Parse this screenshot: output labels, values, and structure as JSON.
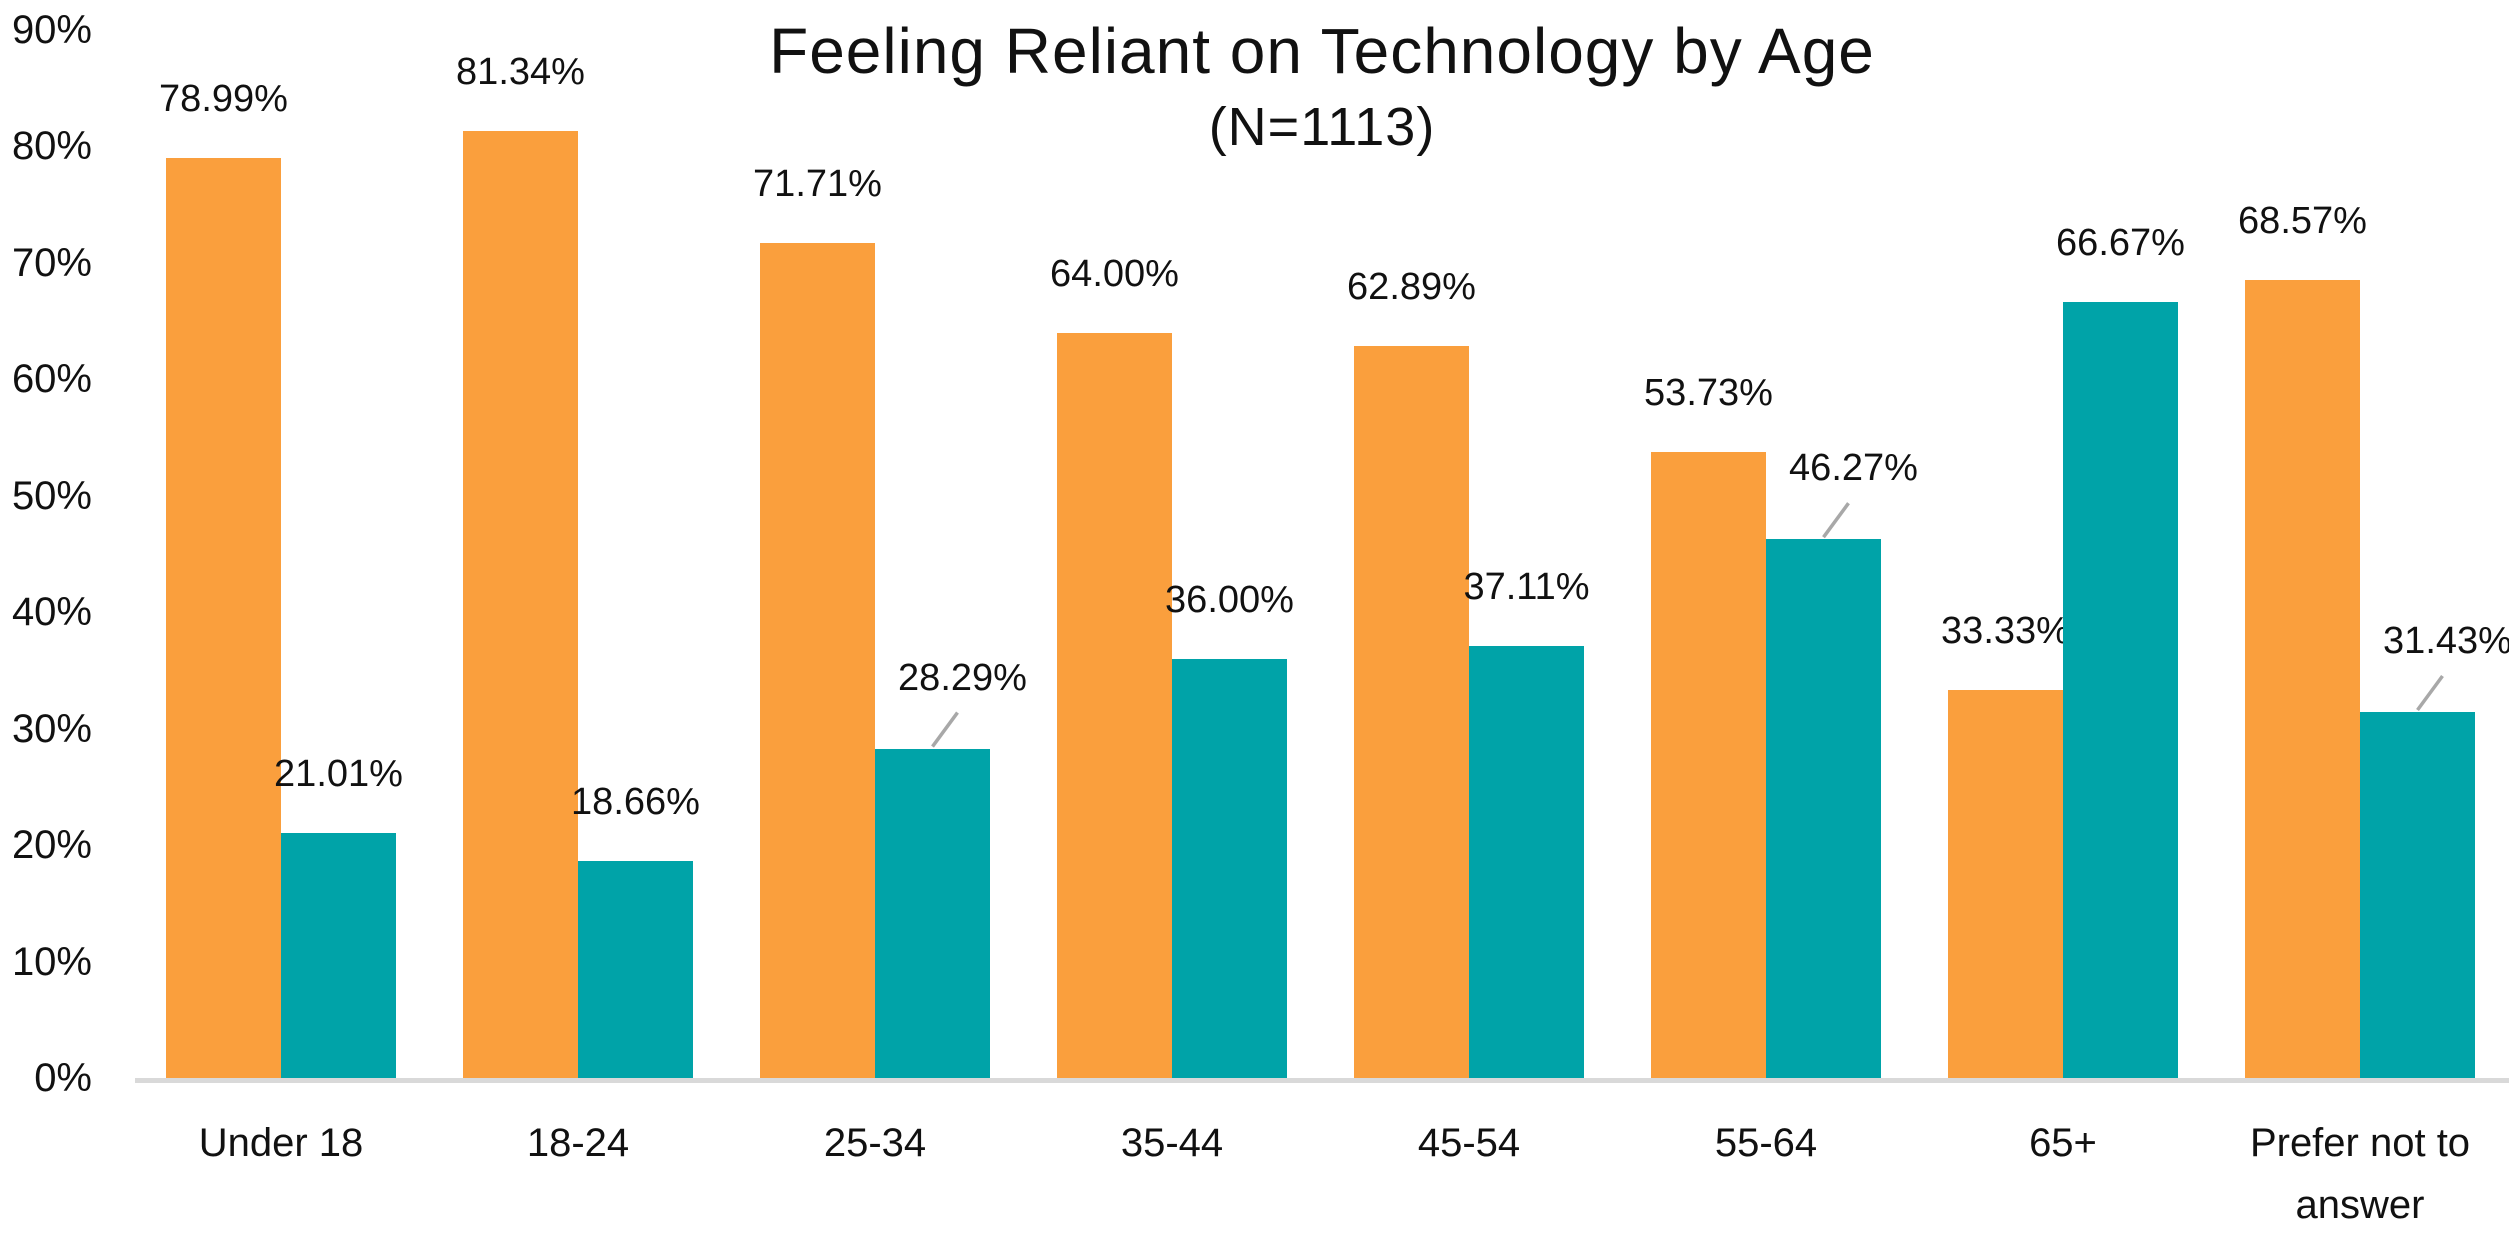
{
  "chart_data": {
    "type": "bar",
    "title": "Feeling Reliant on Technology by Age",
    "subtitle": "(N=1113)",
    "categories": [
      "Under 18",
      "18-24",
      "25-34",
      "35-44",
      "45-54",
      "55-64",
      "65+",
      "Prefer not to answer"
    ],
    "series": [
      {
        "name": "orange",
        "color": "#FA9F3D",
        "values": [
          78.99,
          81.34,
          71.71,
          64.0,
          62.89,
          53.73,
          33.33,
          68.57
        ],
        "labels": [
          "78.99%",
          "81.34%",
          "71.71%",
          "64.00%",
          "62.89%",
          "53.73%",
          "33.33%",
          "68.57%"
        ]
      },
      {
        "name": "teal",
        "color": "#00A3A8",
        "values": [
          21.01,
          18.66,
          28.29,
          36.0,
          37.11,
          46.27,
          66.67,
          31.43
        ],
        "labels": [
          "21.01%",
          "18.66%",
          "28.29%",
          "36.00%",
          "37.11%",
          "46.27%",
          "66.67%",
          "31.43%"
        ]
      }
    ],
    "y_ticks": [
      "0%",
      "10%",
      "20%",
      "30%",
      "40%",
      "50%",
      "60%",
      "70%",
      "80%",
      "90%"
    ],
    "ylim": [
      0,
      90
    ],
    "grid": false,
    "legend": false,
    "bar_value_labels": true,
    "label_leader_lines": {
      "series_index": 1,
      "category_indices": [
        2,
        5,
        7
      ]
    },
    "colors": {
      "background": "#FFFFFF",
      "text": "#111111",
      "axis_line": "#D9D9D9",
      "leader_line": "#A8A8A8"
    }
  }
}
